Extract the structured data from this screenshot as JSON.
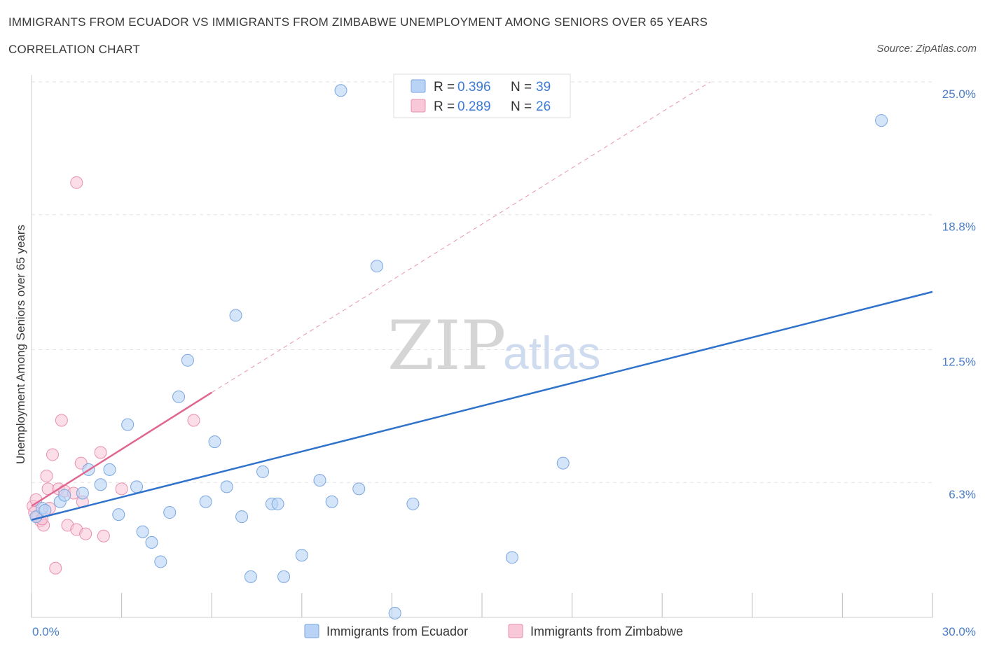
{
  "title": "IMMIGRANTS FROM ECUADOR VS IMMIGRANTS FROM ZIMBABWE UNEMPLOYMENT AMONG SENIORS OVER 65 YEARS",
  "subtitle": "CORRELATION CHART",
  "source": "Source: ZipAtlas.com",
  "watermark": {
    "zip": "ZIP",
    "atlas": "atlas"
  },
  "colors": {
    "ecuador_fill": "#b8d3f5",
    "ecuador_stroke": "#7aa6e0",
    "ecuador_line": "#2f72cc",
    "zimbabwe_fill": "#f8c8d8",
    "zimbabwe_stroke": "#e890ae",
    "zimbabwe_line": "#e0668e",
    "axis_tick_label": "#4a7ec9",
    "grid": "#e2e2e2"
  },
  "legend": {
    "ecuador": {
      "r_label": "R = ",
      "r_value": "0.396",
      "n_label": "N = ",
      "n_value": "39"
    },
    "zimbabwe": {
      "r_label": "R = ",
      "r_value": "0.289",
      "n_label": "N = ",
      "n_value": "26"
    }
  },
  "bottom_legend": {
    "ecuador": "Immigrants from Ecuador",
    "zimbabwe": "Immigrants from Zimbabwe"
  },
  "chart_data": {
    "type": "scatter",
    "title": "IMMIGRANTS FROM ECUADOR VS IMMIGRANTS FROM ZIMBABWE UNEMPLOYMENT AMONG SENIORS OVER 65 YEARS",
    "xlabel": "",
    "ylabel": "Unemployment Among Seniors over 65 years",
    "xlim": [
      0,
      30
    ],
    "ylim": [
      0,
      25
    ],
    "x_tick_labels": [
      "0.0%",
      "30.0%"
    ],
    "y_ticks": [
      6.3,
      12.5,
      18.8,
      25.0
    ],
    "y_tick_labels": [
      "6.3%",
      "12.5%",
      "18.8%",
      "25.0%"
    ],
    "grid": true,
    "series": [
      {
        "name": "Immigrants from Ecuador",
        "R": 0.396,
        "N": 39,
        "points": [
          [
            0.15,
            4.7
          ],
          [
            0.35,
            5.1
          ],
          [
            0.45,
            5.0
          ],
          [
            0.95,
            5.4
          ],
          [
            1.1,
            5.7
          ],
          [
            1.7,
            5.8
          ],
          [
            1.9,
            6.9
          ],
          [
            2.3,
            6.2
          ],
          [
            2.6,
            6.9
          ],
          [
            2.9,
            4.8
          ],
          [
            3.2,
            9.0
          ],
          [
            3.5,
            6.1
          ],
          [
            3.7,
            4.0
          ],
          [
            4.0,
            3.5
          ],
          [
            4.3,
            2.6
          ],
          [
            4.6,
            4.9
          ],
          [
            4.9,
            10.3
          ],
          [
            5.2,
            12.0
          ],
          [
            5.8,
            5.4
          ],
          [
            6.1,
            8.2
          ],
          [
            6.5,
            6.1
          ],
          [
            6.8,
            14.1
          ],
          [
            7.0,
            4.7
          ],
          [
            7.3,
            1.9
          ],
          [
            7.7,
            6.8
          ],
          [
            8.0,
            5.3
          ],
          [
            8.2,
            5.3
          ],
          [
            8.4,
            1.9
          ],
          [
            9.0,
            2.9
          ],
          [
            9.6,
            6.4
          ],
          [
            10.0,
            5.4
          ],
          [
            10.3,
            24.6
          ],
          [
            10.9,
            6.0
          ],
          [
            11.5,
            16.4
          ],
          [
            12.1,
            0.2
          ],
          [
            12.7,
            5.3
          ],
          [
            16.0,
            2.8
          ],
          [
            17.7,
            7.2
          ],
          [
            28.3,
            23.2
          ]
        ],
        "trend": {
          "x": [
            0,
            30
          ],
          "y": [
            4.55,
            15.2
          ]
        }
      },
      {
        "name": "Immigrants from Zimbabwe",
        "R": 0.289,
        "N": 26,
        "points": [
          [
            0.05,
            5.2
          ],
          [
            0.1,
            4.9
          ],
          [
            0.15,
            5.5
          ],
          [
            0.2,
            4.7
          ],
          [
            0.3,
            4.5
          ],
          [
            0.4,
            4.3
          ],
          [
            0.5,
            6.6
          ],
          [
            0.55,
            6.0
          ],
          [
            0.6,
            5.1
          ],
          [
            0.7,
            7.6
          ],
          [
            0.8,
            2.3
          ],
          [
            0.9,
            6.0
          ],
          [
            1.0,
            9.2
          ],
          [
            1.1,
            5.9
          ],
          [
            1.2,
            4.3
          ],
          [
            1.4,
            5.8
          ],
          [
            1.5,
            4.1
          ],
          [
            1.65,
            7.2
          ],
          [
            1.7,
            5.4
          ],
          [
            1.5,
            20.3
          ],
          [
            1.8,
            3.9
          ],
          [
            2.3,
            7.7
          ],
          [
            2.4,
            3.8
          ],
          [
            3.0,
            6.0
          ],
          [
            5.4,
            9.2
          ],
          [
            0.35,
            4.6
          ]
        ],
        "trend_solid": {
          "x": [
            0,
            6.0
          ],
          "y": [
            5.2,
            10.5
          ]
        },
        "trend_dashed": {
          "x": [
            6.0,
            22.6
          ],
          "y": [
            10.5,
            25.0
          ]
        }
      }
    ]
  }
}
